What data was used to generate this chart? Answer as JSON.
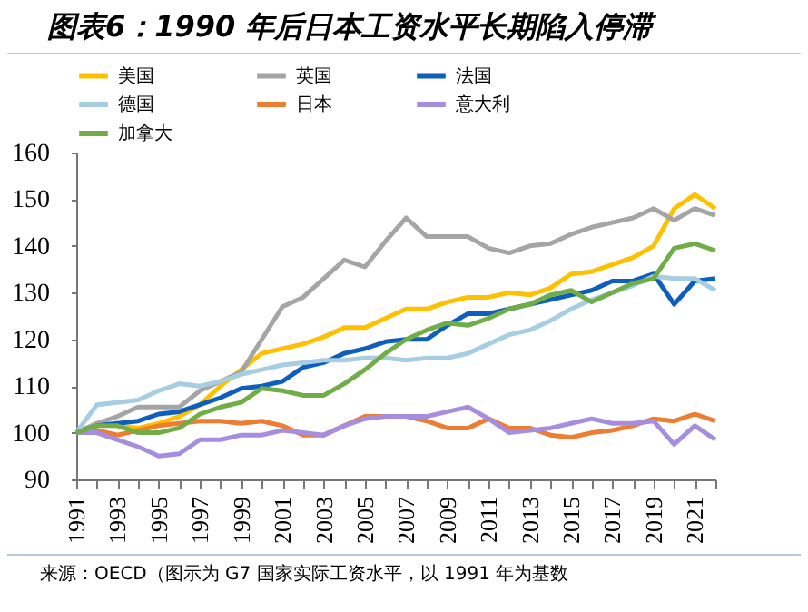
{
  "chart_data": {
    "type": "line",
    "title": "图表6：1990 年后日本工资水平长期陷入停滞",
    "annotations": [
      "来源：OECD（图示为 G7 国家实际工资水平，以 1991 年为基数"
    ],
    "x": [
      1991,
      1992,
      1993,
      1994,
      1995,
      1996,
      1997,
      1998,
      1999,
      2000,
      2001,
      2002,
      2003,
      2004,
      2005,
      2006,
      2007,
      2008,
      2009,
      2010,
      2011,
      2012,
      2013,
      2014,
      2015,
      2016,
      2017,
      2018,
      2019,
      2020,
      2021,
      2022
    ],
    "series": [
      {
        "name": "美国",
        "color": "#ffc000",
        "values": [
          100,
          102,
          101.5,
          101,
          102,
          103.5,
          106,
          110,
          113.5,
          117,
          118,
          119,
          120.5,
          122.5,
          122.5,
          124.5,
          126.5,
          126.5,
          128,
          129,
          129,
          130,
          129.5,
          131,
          134,
          134.5,
          136,
          137.5,
          140,
          148,
          151,
          148
        ]
      },
      {
        "name": "英国",
        "color": "#a5a5a5",
        "values": [
          100,
          102,
          103.5,
          105.5,
          105.5,
          105.5,
          109,
          111,
          113,
          120,
          127,
          129,
          133,
          137,
          135.5,
          141,
          146,
          142,
          142,
          142,
          139.5,
          138.5,
          140,
          140.5,
          142.5,
          144,
          145,
          146,
          148,
          145.5,
          148,
          146.5
        ]
      },
      {
        "name": "法国",
        "color": "#0e5fbd",
        "values": [
          100,
          101.5,
          102,
          102.5,
          104,
          104.5,
          106,
          107.5,
          109.5,
          110,
          111,
          114,
          115,
          117,
          118,
          119.5,
          120,
          120,
          123,
          125.5,
          125.5,
          126.5,
          127.5,
          128.5,
          129.5,
          130.5,
          132.5,
          132.5,
          134,
          127.5,
          132.5,
          133
        ]
      },
      {
        "name": "德国",
        "color": "#a6cde2",
        "values": [
          100,
          106,
          106.5,
          107,
          109,
          110.5,
          110,
          111,
          112.5,
          113.5,
          114.5,
          115,
          115.5,
          115.5,
          116,
          116,
          115.5,
          116,
          116,
          117,
          119,
          121,
          122,
          124,
          126.5,
          128.5,
          130,
          131.5,
          133.5,
          133,
          133,
          130.5
        ]
      },
      {
        "name": "日本",
        "color": "#ed7d31",
        "values": [
          100,
          100.5,
          99.5,
          100.5,
          101.5,
          102,
          102.5,
          102.5,
          102,
          102.5,
          101.5,
          99.5,
          99.5,
          101.5,
          103.5,
          103.5,
          103.5,
          102.5,
          101,
          101,
          103,
          101,
          101,
          99.5,
          99,
          100,
          100.5,
          101.5,
          103,
          102.5,
          104,
          102.5
        ]
      },
      {
        "name": "意大利",
        "color": "#a58ee0",
        "values": [
          100,
          100,
          98.5,
          97,
          95,
          95.5,
          98.5,
          98.5,
          99.5,
          99.5,
          100.5,
          100,
          99.5,
          101.5,
          103,
          103.5,
          103.5,
          103.5,
          104.5,
          105.5,
          103,
          100,
          100.5,
          101,
          102,
          103,
          102,
          102,
          102.5,
          97.5,
          101.5,
          98.5
        ]
      },
      {
        "name": "加拿大",
        "color": "#70ad47",
        "values": [
          100,
          101.5,
          101.5,
          100,
          100,
          101,
          104,
          105.5,
          106.5,
          109.5,
          109,
          108,
          108,
          110.5,
          113.5,
          117,
          120,
          122,
          123.5,
          123,
          124.5,
          126.5,
          127.5,
          129.5,
          130.5,
          128,
          130,
          132,
          133,
          139.5,
          140.5,
          139
        ]
      }
    ],
    "xlim": [
      1991,
      2022
    ],
    "xticks": [
      1991,
      {
        "value": 1992,
        "label": null
      },
      1993,
      {
        "value": 1994,
        "label": null
      },
      1995,
      {
        "value": 1996,
        "label": null
      },
      1997,
      {
        "value": 1998,
        "label": null
      },
      1999,
      {
        "value": 2000,
        "label": null
      },
      2001,
      {
        "value": 2002,
        "label": null
      },
      2003,
      {
        "value": 2004,
        "label": null
      },
      2005,
      {
        "value": 2006,
        "label": null
      },
      2007,
      {
        "value": 2008,
        "label": null
      },
      2009,
      {
        "value": 2010,
        "label": null
      },
      2011,
      {
        "value": 2012,
        "label": null
      },
      2013,
      {
        "value": 2014,
        "label": null
      },
      2015,
      {
        "value": 2016,
        "label": null
      },
      2017,
      {
        "value": 2018,
        "label": null
      },
      2019,
      {
        "value": 2020,
        "label": null
      },
      2021,
      {
        "value": 2022,
        "label": null
      }
    ],
    "ylim": [
      90,
      160
    ],
    "yticks": [
      90,
      100,
      110,
      120,
      130,
      140,
      150,
      160
    ],
    "legend": "top",
    "grid": false,
    "line_style": "solid",
    "marker": "none"
  }
}
